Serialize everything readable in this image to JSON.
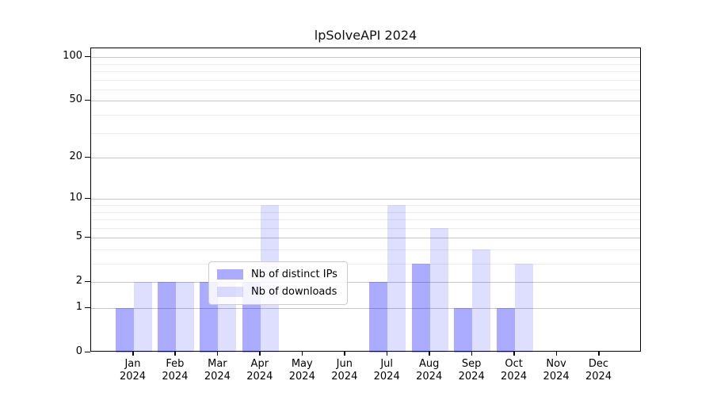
{
  "page": {
    "title": "lpSolveAPI 2024"
  },
  "chart_data": {
    "type": "bar",
    "title": "lpSolveAPI 2024",
    "categories": [
      "Jan",
      "Feb",
      "Mar",
      "Apr",
      "May",
      "Jun",
      "Jul",
      "Aug",
      "Sep",
      "Oct",
      "Nov",
      "Dec"
    ],
    "year_label": "2024",
    "series": [
      {
        "name": "Nb of distinct IPs",
        "color": "rgba(0,0,255,0.33)",
        "values": [
          1,
          2,
          2,
          2,
          0,
          0,
          2,
          3,
          1,
          1,
          0,
          0
        ]
      },
      {
        "name": "Nb of downloads",
        "color": "rgba(0,0,255,0.13)",
        "values": [
          2,
          2,
          2,
          9,
          0,
          0,
          9,
          6,
          4,
          3,
          0,
          0
        ]
      }
    ],
    "yscale": "log1p",
    "ylim": [
      0,
      115
    ],
    "y_major_ticks": [
      0,
      1,
      2,
      5,
      10,
      20,
      50,
      100
    ],
    "y_minor_ticks": [
      3,
      4,
      6,
      7,
      8,
      9,
      30,
      40,
      60,
      70,
      80,
      90
    ],
    "grid": "on",
    "legend_position": "lower-center",
    "colors": {
      "major_grid": "#c6c6c6",
      "minor_grid": "#ececec",
      "spine": "#000000",
      "bar_dark_rendered": "#aaaaf8",
      "bar_light_rendered": "#dcdcfa"
    }
  }
}
